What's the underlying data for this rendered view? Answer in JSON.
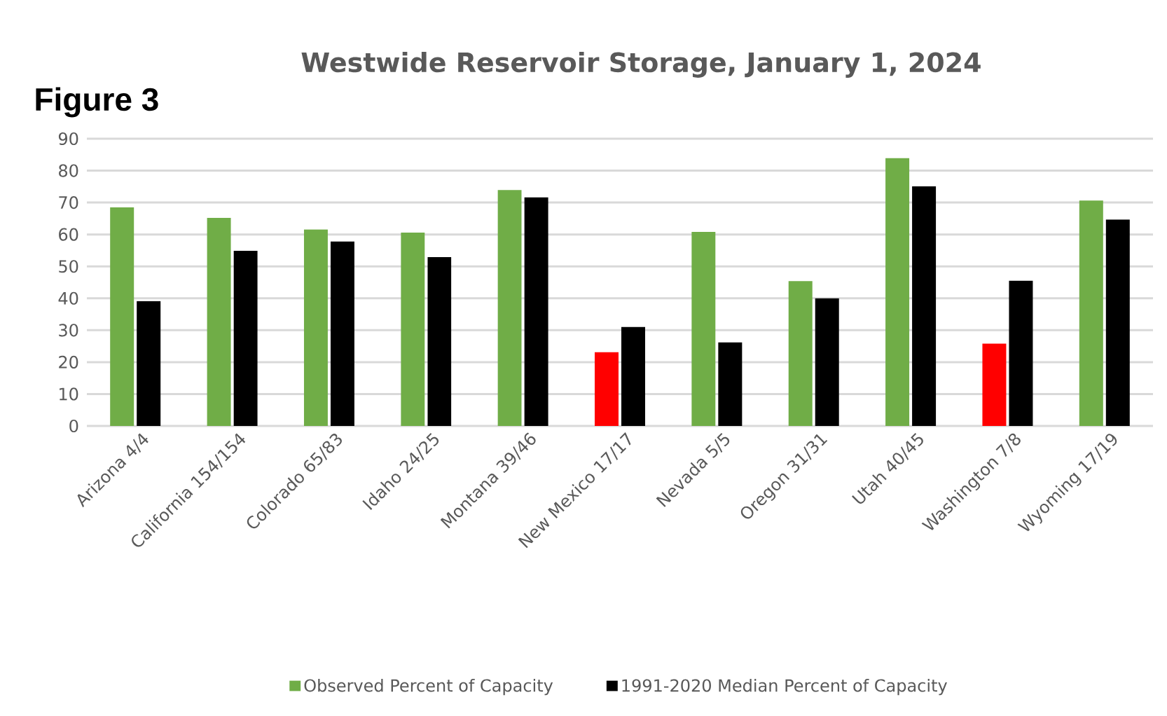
{
  "chart_data": {
    "type": "bar",
    "title": "Westwide Reservoir Storage, January 1, 2024",
    "annotations": [
      "Figure 3"
    ],
    "categories": [
      "Arizona 4/4",
      "California 154/154",
      "Colorado 65/83",
      "Idaho 24/25",
      "Montana 39/46",
      "New Mexico 17/17",
      "Nevada 5/5",
      "Oregon 31/31",
      "Utah 40/45",
      "Washington 7/8",
      "Wyoming 17/19"
    ],
    "series": [
      {
        "name": "Observed Percent of Capacity",
        "color": "#70ad47",
        "colors": [
          "#70ad47",
          "#70ad47",
          "#70ad47",
          "#70ad47",
          "#70ad47",
          "#ff0000",
          "#70ad47",
          "#70ad47",
          "#70ad47",
          "#ff0000",
          "#70ad47"
        ],
        "values": [
          68.5,
          65.2,
          61.6,
          60.6,
          73.9,
          23.1,
          60.8,
          45.4,
          83.9,
          25.8,
          70.6
        ]
      },
      {
        "name": "1991-2020 Median Percent of Capacity",
        "color": "#000000",
        "values": [
          39.1,
          54.9,
          57.8,
          52.9,
          71.6,
          31.0,
          26.2,
          40.0,
          75.1,
          45.5,
          64.7
        ]
      }
    ],
    "ylim": [
      0,
      90
    ],
    "yticks": [
      0,
      10,
      20,
      30,
      40,
      50,
      60,
      70,
      80,
      90
    ],
    "grid": "y",
    "legend": "bottom"
  }
}
